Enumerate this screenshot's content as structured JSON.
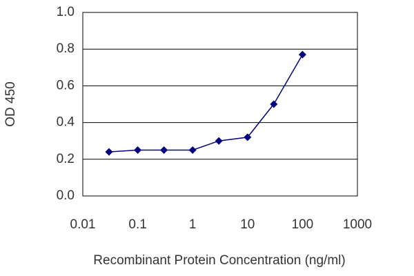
{
  "chart_data": {
    "type": "line",
    "xlabel": "Recombinant Protein Concentration (ng/ml)",
    "ylabel": "OD 450",
    "x": [
      0.03,
      0.1,
      0.3,
      1,
      3,
      10,
      30,
      100
    ],
    "values": [
      0.24,
      0.25,
      0.25,
      0.25,
      0.3,
      0.32,
      0.5,
      0.77
    ],
    "color": "#000080",
    "xscale": "log",
    "xlim": [
      0.01,
      1000
    ],
    "xticks": [
      0.01,
      0.1,
      1,
      10,
      100,
      1000
    ],
    "ylim": [
      0,
      1
    ],
    "yticks": [
      {
        "value": 0,
        "label": "0.0"
      },
      0.2,
      0.4,
      0.6,
      0.8,
      {
        "value": 1,
        "label": "1.0"
      }
    ],
    "grid": true
  }
}
